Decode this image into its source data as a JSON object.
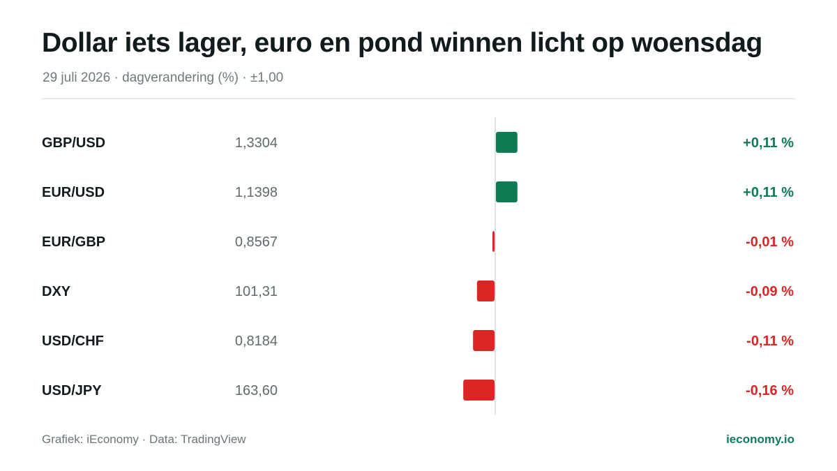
{
  "header": {
    "title": "Dollar iets lager, euro en pond winnen licht op woensdag",
    "subtitle": "29 juli 2026 · dagverandering (%) · ±1,00"
  },
  "footer": {
    "source": "Grafiek: iEconomy · Data: TradingView",
    "brand": "ieconomy.io"
  },
  "colors": {
    "positive": "#0f7b52",
    "negative": "#dc2626",
    "zero_line": "#d5d9db"
  },
  "chart_data": {
    "type": "bar",
    "orientation": "horizontal",
    "categories": [
      "GBP/USD",
      "EUR/USD",
      "EUR/GBP",
      "DXY",
      "USD/CHF",
      "USD/JPY"
    ],
    "quotes": [
      "1,3304",
      "1,1398",
      "0,8567",
      "101,31",
      "0,8184",
      "163,60"
    ],
    "values": [
      0.11,
      0.11,
      -0.01,
      -0.09,
      -0.11,
      -0.16
    ],
    "value_labels": [
      "+0,11 %",
      "+0,11 %",
      "-0,01 %",
      "-0,09 %",
      "-0,11 %",
      "-0,16 %"
    ],
    "xlim": [
      -1,
      1
    ],
    "grid": false,
    "legend": "none"
  }
}
